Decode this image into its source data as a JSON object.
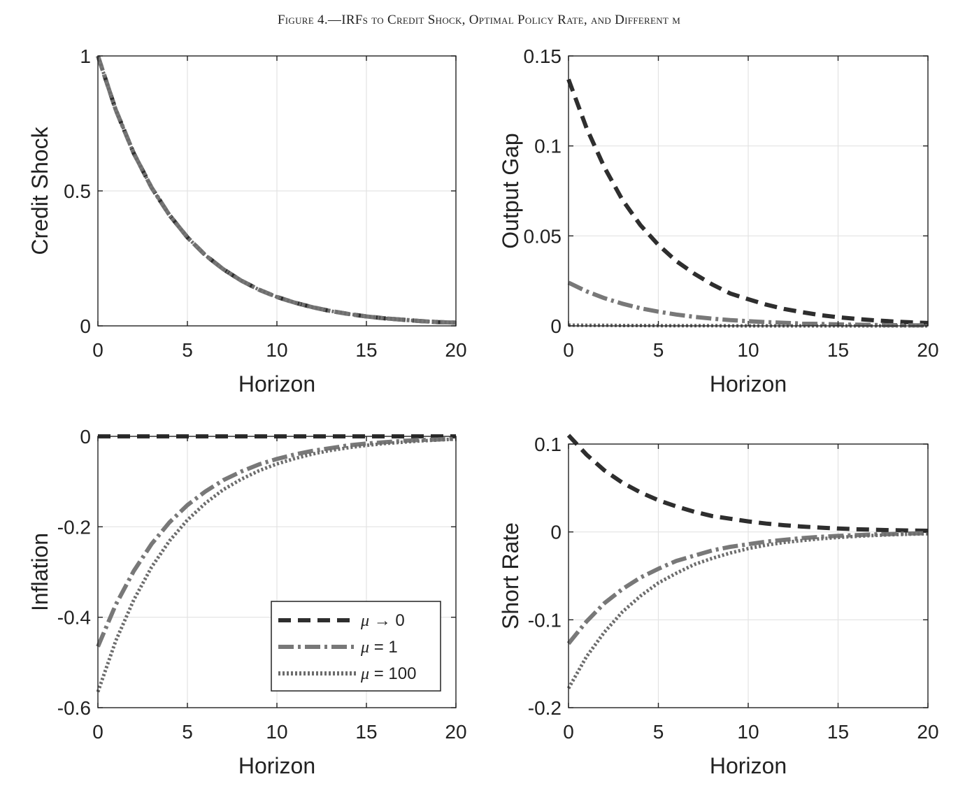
{
  "figure": {
    "title": "Figure 4.—IRFs to Credit Shock, Optimal Policy Rate, and Different μ"
  },
  "colors": {
    "mu_to_0": "#2e2e2e",
    "mu_1": "#787878",
    "mu_100": "#6c6c6c",
    "grid": "#e3e3e3",
    "axis": "#222222"
  },
  "legend": {
    "entries": [
      {
        "symbol": "μ",
        "rest": " → 0"
      },
      {
        "symbol": "μ",
        "rest": " = 1"
      },
      {
        "symbol": "μ",
        "rest": " = 100"
      }
    ]
  },
  "chart_data": [
    {
      "type": "line",
      "ylabel": "Credit Shock",
      "xlabel": "Horizon",
      "xlim": [
        0,
        20
      ],
      "ylim": [
        0,
        1
      ],
      "xticks": [
        0,
        5,
        10,
        15,
        20
      ],
      "yticks": [
        0,
        0.5,
        1
      ],
      "ytick_labels": [
        "0",
        "0.5",
        "1"
      ],
      "grid": true,
      "x": [
        0,
        1,
        2,
        3,
        4,
        5,
        6,
        7,
        8,
        9,
        10,
        11,
        12,
        13,
        14,
        15,
        16,
        17,
        18,
        19,
        20
      ],
      "series": [
        {
          "key": "mu_to_0",
          "style": "dashed",
          "values": [
            1.0,
            0.8,
            0.64,
            0.512,
            0.41,
            0.328,
            0.262,
            0.21,
            0.168,
            0.134,
            0.107,
            0.086,
            0.069,
            0.055,
            0.044,
            0.035,
            0.028,
            0.023,
            0.018,
            0.014,
            0.012
          ]
        },
        {
          "key": "mu_1",
          "style": "dashdot",
          "values": [
            1.0,
            0.8,
            0.64,
            0.512,
            0.41,
            0.328,
            0.262,
            0.21,
            0.168,
            0.134,
            0.107,
            0.086,
            0.069,
            0.055,
            0.044,
            0.035,
            0.028,
            0.023,
            0.018,
            0.014,
            0.012
          ]
        },
        {
          "key": "mu_100",
          "style": "dotted",
          "values": [
            1.0,
            0.8,
            0.64,
            0.512,
            0.41,
            0.328,
            0.262,
            0.21,
            0.168,
            0.134,
            0.107,
            0.086,
            0.069,
            0.055,
            0.044,
            0.035,
            0.028,
            0.023,
            0.018,
            0.014,
            0.012
          ]
        }
      ]
    },
    {
      "type": "line",
      "ylabel": "Output Gap",
      "xlabel": "Horizon",
      "xlim": [
        0,
        20
      ],
      "ylim": [
        0,
        0.15
      ],
      "xticks": [
        0,
        5,
        10,
        15,
        20
      ],
      "yticks": [
        0,
        0.05,
        0.1,
        0.15
      ],
      "ytick_labels": [
        "0",
        "0.05",
        "0.1",
        "0.15"
      ],
      "grid": true,
      "x": [
        0,
        1,
        2,
        3,
        4,
        5,
        6,
        7,
        8,
        9,
        10,
        11,
        12,
        13,
        14,
        15,
        16,
        17,
        18,
        19,
        20
      ],
      "series": [
        {
          "key": "mu_to_0",
          "style": "dashed",
          "values": [
            0.137,
            0.11,
            0.088,
            0.07,
            0.056,
            0.045,
            0.036,
            0.029,
            0.023,
            0.018,
            0.0148,
            0.0118,
            0.0094,
            0.0076,
            0.006,
            0.0048,
            0.0039,
            0.0031,
            0.0025,
            0.002,
            0.0016
          ]
        },
        {
          "key": "mu_1",
          "style": "dashdot",
          "values": [
            0.024,
            0.0192,
            0.0154,
            0.0123,
            0.0098,
            0.0079,
            0.0063,
            0.005,
            0.004,
            0.0032,
            0.0026,
            0.0021,
            0.0017,
            0.0013,
            0.0011,
            0.0008,
            0.0007,
            0.0005,
            0.0004,
            0.0003,
            0.0003
          ]
        },
        {
          "key": "mu_100",
          "style": "dotted",
          "values": [
            0.0004,
            0.0003,
            0.0003,
            0.0002,
            0.0002,
            0.0001,
            0.0001,
            0.0001,
            0.0001,
            0.0,
            0.0,
            0.0,
            0.0,
            0.0,
            0.0,
            0.0,
            0.0,
            0.0,
            0.0,
            0.0,
            0.0
          ]
        }
      ]
    },
    {
      "type": "line",
      "ylabel": "Inflation",
      "xlabel": "Horizon",
      "xlim": [
        0,
        20
      ],
      "ylim": [
        -0.6,
        0
      ],
      "xticks": [
        0,
        5,
        10,
        15,
        20
      ],
      "yticks": [
        -0.6,
        -0.4,
        -0.2,
        0
      ],
      "ytick_labels": [
        "-0.6",
        "-0.4",
        "-0.2",
        "0"
      ],
      "grid": true,
      "legend": "bottom-right",
      "x": [
        0,
        1,
        2,
        3,
        4,
        5,
        6,
        7,
        8,
        9,
        10,
        11,
        12,
        13,
        14,
        15,
        16,
        17,
        18,
        19,
        20
      ],
      "series": [
        {
          "key": "mu_to_0",
          "style": "dashed",
          "values": [
            0,
            0,
            0,
            0,
            0,
            0,
            0,
            0,
            0,
            0,
            0,
            0,
            0,
            0,
            0,
            0,
            0,
            0,
            0,
            0,
            0
          ]
        },
        {
          "key": "mu_1",
          "style": "dashdot",
          "values": [
            -0.465,
            -0.372,
            -0.298,
            -0.238,
            -0.19,
            -0.152,
            -0.122,
            -0.097,
            -0.078,
            -0.062,
            -0.05,
            -0.04,
            -0.032,
            -0.026,
            -0.02,
            -0.016,
            -0.013,
            -0.01,
            -0.008,
            -0.007,
            -0.005
          ]
        },
        {
          "key": "mu_100",
          "style": "dotted",
          "values": [
            -0.565,
            -0.452,
            -0.362,
            -0.289,
            -0.231,
            -0.185,
            -0.148,
            -0.118,
            -0.095,
            -0.076,
            -0.061,
            -0.049,
            -0.039,
            -0.031,
            -0.025,
            -0.02,
            -0.016,
            -0.013,
            -0.01,
            -0.008,
            -0.006
          ]
        }
      ]
    },
    {
      "type": "line",
      "ylabel": "Short Rate",
      "xlabel": "Horizon",
      "xlim": [
        0,
        20
      ],
      "ylim": [
        -0.2,
        0.1
      ],
      "xticks": [
        0,
        5,
        10,
        15,
        20
      ],
      "yticks": [
        -0.2,
        -0.1,
        0,
        0.1
      ],
      "ytick_labels": [
        "-0.2",
        "-0.1",
        "0",
        "0.1"
      ],
      "grid": true,
      "x": [
        0,
        1,
        2,
        3,
        4,
        5,
        6,
        7,
        8,
        9,
        10,
        11,
        12,
        13,
        14,
        15,
        16,
        17,
        18,
        19,
        20
      ],
      "series": [
        {
          "key": "mu_to_0",
          "style": "dashed",
          "values": [
            0.11,
            0.088,
            0.07,
            0.056,
            0.045,
            0.036,
            0.029,
            0.023,
            0.018,
            0.015,
            0.012,
            0.0095,
            0.0076,
            0.0061,
            0.0049,
            0.0039,
            0.0031,
            0.0025,
            0.002,
            0.0016,
            0.0013
          ]
        },
        {
          "key": "mu_1",
          "style": "dashdot",
          "values": [
            -0.127,
            -0.102,
            -0.081,
            -0.065,
            -0.052,
            -0.042,
            -0.033,
            -0.027,
            -0.021,
            -0.017,
            -0.014,
            -0.011,
            -0.009,
            -0.007,
            -0.0056,
            -0.0045,
            -0.0036,
            -0.0029,
            -0.0023,
            -0.0018,
            -0.0015
          ]
        },
        {
          "key": "mu_100",
          "style": "dotted",
          "values": [
            -0.178,
            -0.142,
            -0.114,
            -0.091,
            -0.073,
            -0.058,
            -0.047,
            -0.037,
            -0.03,
            -0.024,
            -0.019,
            -0.015,
            -0.012,
            -0.0098,
            -0.0078,
            -0.0063,
            -0.005,
            -0.004,
            -0.0032,
            -0.0026,
            -0.0021
          ]
        }
      ]
    }
  ]
}
